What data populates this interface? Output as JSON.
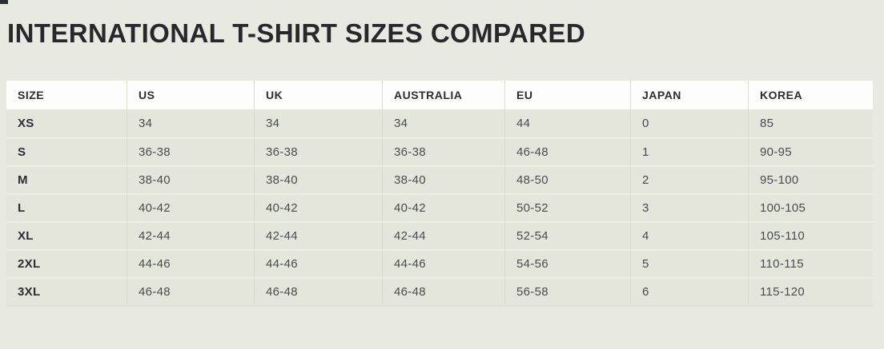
{
  "page": {
    "title": "INTERNATIONAL T-SHIRT SIZES COMPARED",
    "background_color": "#e8eae1"
  },
  "colors": {
    "title_text": "#26282c",
    "header_row_bg": "#fdfdfc",
    "header_text": "#2a2d31",
    "data_row_bg": "#e5e6db",
    "size_label_text": "#2a2d31",
    "cell_text": "#474c50",
    "column_divider": "#d9dbce",
    "row_divider": "#edefe5"
  },
  "chart_data": {
    "type": "table",
    "title": "INTERNATIONAL T-SHIRT SIZES COMPARED",
    "columns": [
      "SIZE",
      "US",
      "UK",
      "AUSTRALIA",
      "EU",
      "JAPAN",
      "KOREA"
    ],
    "rows": [
      [
        "XS",
        "34",
        "34",
        "34",
        "44",
        "0",
        "85"
      ],
      [
        "S",
        "36-38",
        "36-38",
        "36-38",
        "46-48",
        "1",
        "90-95"
      ],
      [
        "M",
        "38-40",
        "38-40",
        "38-40",
        "48-50",
        "2",
        "95-100"
      ],
      [
        "L",
        "40-42",
        "40-42",
        "40-42",
        "50-52",
        "3",
        "100-105"
      ],
      [
        "XL",
        "42-44",
        "42-44",
        "42-44",
        "52-54",
        "4",
        "105-110"
      ],
      [
        "2XL",
        "44-46",
        "44-46",
        "44-46",
        "54-56",
        "5",
        "110-115"
      ],
      [
        "3XL",
        "46-48",
        "46-48",
        "46-48",
        "56-58",
        "6",
        "115-120"
      ]
    ],
    "layout": {
      "header_row_background": "white",
      "body_row_background": "light sage",
      "grid": "vertical column dividers and light horizontal row dividers"
    }
  }
}
